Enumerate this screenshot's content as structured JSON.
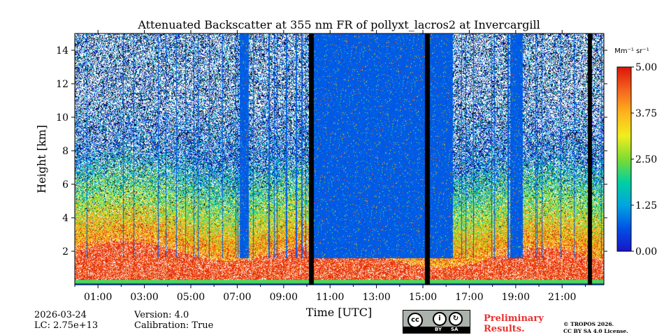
{
  "chart_data": {
    "type": "heatmap",
    "title": "Attenuated Backscatter at 355 nm FR of pollyxt_lacros2 at Invercargill",
    "xlabel": "Time [UTC]",
    "ylabel": "Height [km]",
    "xlim": [
      0,
      22.8
    ],
    "ylim": [
      0,
      15
    ],
    "x_tick_values": [
      1,
      3,
      5,
      7,
      9,
      11,
      13,
      15,
      17,
      19,
      21
    ],
    "x_tick_labels": [
      "01:00",
      "03:00",
      "05:00",
      "07:00",
      "09:00",
      "11:00",
      "13:00",
      "15:00",
      "17:00",
      "19:00",
      "21:00"
    ],
    "y_tick_values": [
      2,
      4,
      6,
      8,
      10,
      12,
      14
    ],
    "y_tick_labels": [
      "2",
      "4",
      "6",
      "8",
      "10",
      "12",
      "14"
    ],
    "colorbar": {
      "unit": "Mm⁻¹ sr⁻¹",
      "min": 0,
      "max": 5,
      "tick_values": [
        0,
        1.25,
        2.5,
        3.75,
        5
      ],
      "tick_labels": [
        "0.00",
        "1.25",
        "2.50",
        "3.75",
        "5.00"
      ]
    },
    "no_data_periods_hours": [
      [
        10.1,
        10.3
      ],
      [
        15.1,
        15.3
      ],
      [
        22.1,
        22.3
      ]
    ],
    "low_signal_periods_hours": [
      [
        7.1,
        7.5
      ],
      [
        10.3,
        15.1
      ],
      [
        15.3,
        16.3
      ],
      [
        18.75,
        19.3
      ]
    ],
    "colormap": [
      "#1a14c8",
      "#0052e6",
      "#00a5e0",
      "#00d0a0",
      "#7ddc32",
      "#f0ee1e",
      "#ffb41e",
      "#f5641e",
      "#dc140a"
    ]
  },
  "footer": {
    "date": "2026-03-24",
    "lc": "LC: 2.75e+13",
    "version": "Version: 4.0",
    "calibration": "Calibration: True",
    "license_badge": {
      "by": "BY",
      "sa": "SA",
      "cc_symbol": "cc",
      "by_symbol": "i",
      "sa_symbol": "↻"
    },
    "preliminary_line1": "Preliminary",
    "preliminary_line2": "Results.",
    "copyright_line1": "© TROPOS 2026.",
    "copyright_line2": "CC BY SA 4.0 License."
  }
}
